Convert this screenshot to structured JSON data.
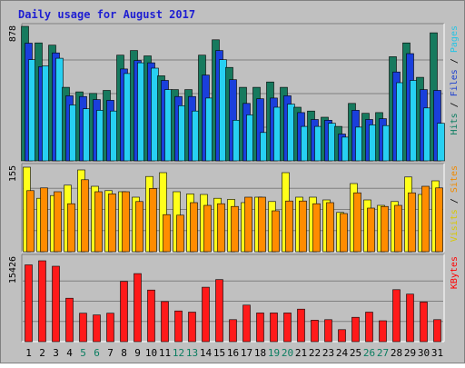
{
  "chart_data": {
    "type": "bar",
    "title": "Daily usage for August 2017",
    "x": [
      "1",
      "2",
      "3",
      "4",
      "5",
      "6",
      "7",
      "8",
      "9",
      "10",
      "11",
      "12",
      "13",
      "14",
      "15",
      "16",
      "17",
      "18",
      "19",
      "20",
      "21",
      "22",
      "23",
      "24",
      "25",
      "26",
      "27",
      "28",
      "29",
      "30",
      "31"
    ],
    "weekend_days": [
      "5",
      "6",
      "12",
      "13",
      "19",
      "20",
      "26",
      "27"
    ],
    "panels": [
      {
        "id": "hits",
        "ymax_label": "878",
        "ymax": 878,
        "axis_labels": [
          {
            "text": "Hits",
            "color": "#0a7d60"
          },
          {
            "text": "Files",
            "color": "#1c3fcf"
          },
          {
            "text": "Pages",
            "color": "#27c4e4"
          }
        ],
        "series": [
          {
            "name": "Hits",
            "color": "#167a5e",
            "values": [
              878,
              770,
              755,
              480,
              450,
              440,
              460,
              690,
              720,
              685,
              555,
              465,
              465,
              690,
              790,
              610,
              480,
              480,
              515,
              480,
              350,
              325,
              285,
              225,
              375,
              310,
              315,
              680,
              770,
              545,
              836
            ]
          },
          {
            "name": "Files",
            "color": "#1a3fdc",
            "values": [
              768,
              615,
              705,
              425,
              420,
              400,
              395,
              600,
              655,
              640,
              525,
              420,
              420,
              560,
              720,
              530,
              375,
              405,
              410,
              425,
              315,
              270,
              265,
              175,
              330,
              270,
              275,
              580,
              700,
              465,
              460
            ]
          },
          {
            "name": "Pages",
            "color": "#27d0f2",
            "values": [
              660,
              620,
              670,
              365,
              340,
              330,
              325,
              570,
              640,
              605,
              465,
              360,
              325,
              410,
              660,
              265,
              300,
              185,
              350,
              370,
              225,
              225,
              245,
              155,
              220,
              235,
              230,
              510,
              525,
              345,
              245
            ]
          }
        ]
      },
      {
        "id": "visits",
        "ymax_label": "155",
        "ymax": 155,
        "axis_labels": [
          {
            "text": "Visits",
            "color": "#d8c800"
          },
          {
            "text": "Sites",
            "color": "#f08a00"
          }
        ],
        "series": [
          {
            "name": "Visits",
            "color": "#ffff1a",
            "values": [
              155,
              98,
              103,
              122,
              150,
              120,
              112,
              110,
              100,
              138,
              145,
              110,
              106,
              105,
              98,
              96,
              90,
              100,
              92,
              145,
              100,
              100,
              95,
              72,
              125,
              95,
              85,
              92,
              137,
              105,
              130
            ]
          },
          {
            "name": "Sites",
            "color": "#ff8c00",
            "values": [
              112,
              117,
              110,
              88,
              132,
              110,
              106,
              110,
              92,
              116,
              68,
              67,
              90,
              85,
              88,
              83,
              100,
              100,
              75,
              93,
              93,
              88,
              90,
              70,
              108,
              80,
              83,
              85,
              108,
              120,
              117
            ]
          }
        ]
      },
      {
        "id": "kbytes",
        "ymax_label": "15426",
        "ymax": 15426,
        "axis_labels": [
          {
            "text": "KBytes",
            "color": "#ff0000"
          }
        ],
        "series": [
          {
            "name": "KBytes",
            "color": "#ff1a1a",
            "values": [
              14650,
              15426,
              14380,
              8280,
              5430,
              5100,
              5430,
              11490,
              12980,
              9850,
              7650,
              5860,
              5640,
              10380,
              11840,
              4200,
              6960,
              5480,
              5480,
              5480,
              6200,
              4090,
              4200,
              2280,
              4640,
              5640,
              3980,
              9920,
              9070,
              7560,
              4200
            ]
          }
        ]
      }
    ]
  }
}
